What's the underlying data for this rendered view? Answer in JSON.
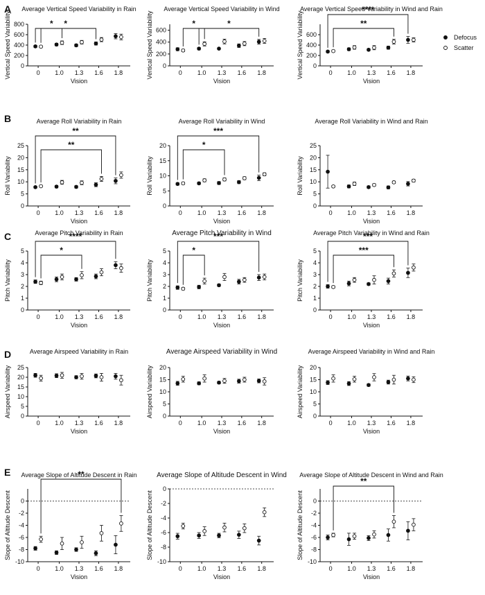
{
  "figure": {
    "legend": {
      "placement": "top-right",
      "entries": [
        {
          "label": "Defocus",
          "marker": "filled-circle"
        },
        {
          "label": "Scatter",
          "marker": "open-circle"
        }
      ]
    },
    "row_labels": [
      "A",
      "B",
      "C",
      "D",
      "E"
    ],
    "colors": {
      "marker": "#111111",
      "background": "#ffffff"
    }
  },
  "chart_data": [
    {
      "id": "A1",
      "row": "A",
      "type": "scatter",
      "title": "Average Vertical Speed Variability in Rain",
      "xlabel": "Vision",
      "ylabel": "Vertical Speed Variability",
      "ylim": [
        0,
        800
      ],
      "yticks": [
        0,
        200,
        400,
        600,
        800
      ],
      "xticks": [
        "0",
        "1.0",
        "1.3",
        "1.6",
        "1.8"
      ],
      "series": [
        {
          "name": "Defocus",
          "values": [
            375,
            410,
            395,
            430,
            570
          ],
          "err": [
            20,
            25,
            25,
            30,
            50
          ]
        },
        {
          "name": "Scatter",
          "values": [
            370,
            445,
            455,
            505,
            555
          ],
          "err": [
            20,
            35,
            35,
            40,
            55
          ]
        }
      ],
      "significance": [
        {
          "label": "*",
          "from": "S0",
          "to": "S1"
        },
        {
          "label": "*",
          "from": "D0",
          "to": "D3"
        }
      ]
    },
    {
      "id": "A2",
      "row": "A",
      "type": "scatter",
      "title": "Average Vertical Speed Variability in Wind",
      "xlabel": "Vision",
      "ylabel": "Vertical Speed Variability",
      "ylim": [
        0,
        700
      ],
      "yticks": [
        0,
        200,
        400,
        600
      ],
      "xticks": [
        "0",
        "1.0",
        "1.3",
        "1.6",
        "1.8"
      ],
      "series": [
        {
          "name": "Defocus",
          "values": [
            280,
            290,
            290,
            340,
            405
          ],
          "err": [
            25,
            20,
            15,
            30,
            40
          ]
        },
        {
          "name": "Scatter",
          "values": [
            260,
            370,
            410,
            375,
            420
          ],
          "err": [
            20,
            35,
            40,
            35,
            40
          ]
        }
      ],
      "significance": [
        {
          "label": "*",
          "from": "S0",
          "to": "S1"
        },
        {
          "label": "*",
          "from": "D1",
          "to": "D4"
        }
      ]
    },
    {
      "id": "A3",
      "row": "A",
      "type": "scatter",
      "title": "Average Vertical Speed Variability in Wind and Rain",
      "xlabel": "Vision",
      "ylabel": "Vertical Speed Variability",
      "ylim": [
        0,
        800
      ],
      "yticks": [
        0,
        200,
        400,
        600
      ],
      "xticks": [
        "0",
        "1.0",
        "1.3",
        "1.6",
        "1.8"
      ],
      "series": [
        {
          "name": "Defocus",
          "values": [
            275,
            320,
            310,
            350,
            500
          ],
          "err": [
            20,
            25,
            20,
            30,
            65
          ]
        },
        {
          "name": "Scatter",
          "values": [
            285,
            355,
            350,
            465,
            500
          ],
          "err": [
            20,
            35,
            40,
            45,
            40
          ]
        }
      ],
      "significance": [
        {
          "label": "****",
          "from": "D0",
          "to": "D4"
        },
        {
          "label": "**",
          "from": "S0",
          "to": "S3"
        }
      ]
    },
    {
      "id": "B1",
      "row": "B",
      "type": "scatter",
      "title": "Average Roll Variability in Rain",
      "xlabel": "Vision",
      "ylabel": "Roll Variability",
      "ylim": [
        0,
        25
      ],
      "yticks": [
        0,
        5,
        10,
        15,
        20,
        25
      ],
      "xticks": [
        "0",
        "1.0",
        "1.3",
        "1.6",
        "1.8"
      ],
      "series": [
        {
          "name": "Defocus",
          "values": [
            7.8,
            8,
            7.9,
            8.8,
            10.4
          ],
          "err": [
            0.4,
            0.5,
            0.5,
            0.8,
            1.2
          ]
        },
        {
          "name": "Scatter",
          "values": [
            8.2,
            9.8,
            9.6,
            11.2,
            12.8
          ],
          "err": [
            0.4,
            0.8,
            0.8,
            1.0,
            1.3
          ]
        }
      ],
      "significance": [
        {
          "label": "**",
          "from": "D0",
          "to": "D4"
        },
        {
          "label": "**",
          "from": "S0",
          "to": "S3"
        }
      ]
    },
    {
      "id": "B2",
      "row": "B",
      "type": "scatter",
      "title": "Average Roll Variability in Wind",
      "xlabel": "Vision",
      "ylabel": "Roll Variability",
      "ylim": [
        0,
        20
      ],
      "yticks": [
        0,
        5,
        10,
        15,
        20
      ],
      "xticks": [
        "0",
        "1.0",
        "1.3",
        "1.6",
        "1.8"
      ],
      "series": [
        {
          "name": "Defocus",
          "values": [
            7.3,
            7.5,
            7.6,
            7.9,
            9.3
          ],
          "err": [
            0.4,
            0.4,
            0.5,
            0.5,
            0.9
          ]
        },
        {
          "name": "Scatter",
          "values": [
            7.5,
            8.5,
            8.8,
            9.2,
            10.5
          ],
          "err": [
            0.4,
            0.5,
            0.5,
            0.5,
            0.5
          ]
        }
      ],
      "significance": [
        {
          "label": "*",
          "from": "S0",
          "to": "S2"
        },
        {
          "label": "***",
          "from": "D0",
          "to": "D4"
        }
      ]
    },
    {
      "id": "B3",
      "row": "B",
      "type": "scatter",
      "title": "Average Roll Variability in Wind and Rain",
      "xlabel": "Vision",
      "ylabel": "Roll Variability",
      "ylim": [
        0,
        25
      ],
      "yticks": [
        0,
        5,
        10,
        15,
        20,
        25
      ],
      "xticks": [
        "0",
        "1.0",
        "1.3",
        "1.6",
        "1.8"
      ],
      "series": [
        {
          "name": "Defocus",
          "values": [
            14.2,
            8.1,
            7.8,
            7.7,
            9.2
          ],
          "err": [
            6.8,
            0.6,
            0.5,
            0.6,
            0.9
          ]
        },
        {
          "name": "Scatter",
          "values": [
            8.1,
            9.2,
            8.7,
            9.8,
            10.5
          ],
          "err": [
            0.4,
            0.7,
            0.5,
            0.5,
            0.6
          ]
        }
      ],
      "significance": []
    },
    {
      "id": "C1",
      "row": "C",
      "type": "scatter",
      "title": "Average Pitch Variability in Rain",
      "xlabel": "Vision",
      "ylabel": "Pitch Variability",
      "ylim": [
        0,
        5
      ],
      "yticks": [
        0,
        1,
        2,
        3,
        4,
        5
      ],
      "xticks": [
        "0",
        "1.0",
        "1.3",
        "1.6",
        "1.8"
      ],
      "series": [
        {
          "name": "Defocus",
          "values": [
            2.4,
            2.6,
            2.6,
            2.85,
            3.8
          ],
          "err": [
            0.15,
            0.2,
            0.15,
            0.2,
            0.3
          ]
        },
        {
          "name": "Scatter",
          "values": [
            2.3,
            2.8,
            2.95,
            3.2,
            3.55
          ],
          "err": [
            0.15,
            0.25,
            0.3,
            0.3,
            0.35
          ]
        }
      ],
      "significance": [
        {
          "label": "*",
          "from": "S0",
          "to": "S2"
        },
        {
          "label": "****",
          "from": "D0",
          "to": "D4"
        }
      ]
    },
    {
      "id": "C2",
      "row": "C",
      "type": "scatter",
      "title": "Average Pitch Variability in Wind",
      "xlabel": "Vision",
      "ylabel": "Pitch Variability",
      "ylim": [
        0,
        5
      ],
      "yticks": [
        0,
        1,
        2,
        3,
        4,
        5
      ],
      "xticks": [
        "0",
        "1.0",
        "1.3",
        "1.6",
        "1.8"
      ],
      "series": [
        {
          "name": "Defocus",
          "values": [
            1.9,
            1.95,
            2.1,
            2.4,
            2.75
          ],
          "err": [
            0.15,
            0.15,
            0.1,
            0.2,
            0.25
          ]
        },
        {
          "name": "Scatter",
          "values": [
            1.8,
            2.45,
            2.8,
            2.55,
            2.8
          ],
          "err": [
            0.1,
            0.25,
            0.3,
            0.2,
            0.25
          ]
        }
      ],
      "significance": [
        {
          "label": "*",
          "from": "S0",
          "to": "S1"
        },
        {
          "label": "***",
          "from": "D0",
          "to": "D4"
        }
      ]
    },
    {
      "id": "C3",
      "row": "C",
      "type": "scatter",
      "title": "Average Pitch Variability in Wind and Rain",
      "xlabel": "Vision",
      "ylabel": "Pitch Variability",
      "ylim": [
        0,
        5
      ],
      "yticks": [
        0,
        1,
        2,
        3,
        4,
        5
      ],
      "xticks": [
        "0",
        "1.0",
        "1.3",
        "1.6",
        "1.8"
      ],
      "series": [
        {
          "name": "Defocus",
          "values": [
            2.0,
            2.25,
            2.2,
            2.45,
            3.15
          ],
          "err": [
            0.15,
            0.2,
            0.1,
            0.25,
            0.4
          ]
        },
        {
          "name": "Scatter",
          "values": [
            1.95,
            2.55,
            2.55,
            3.1,
            3.6
          ],
          "err": [
            0.1,
            0.2,
            0.35,
            0.3,
            0.3
          ]
        }
      ],
      "significance": [
        {
          "label": "***",
          "from": "D0",
          "to": "D4"
        },
        {
          "label": "***",
          "from": "S0",
          "to": "S3"
        }
      ]
    },
    {
      "id": "D1",
      "row": "D",
      "type": "scatter",
      "title": "Average Airspeed Variability in Rain",
      "xlabel": "Vision",
      "ylabel": "Airspeed Variability",
      "ylim": [
        0,
        25
      ],
      "yticks": [
        0,
        5,
        10,
        15,
        20,
        25
      ],
      "xticks": [
        "0",
        "1.0",
        "1.3",
        "1.6",
        "1.8"
      ],
      "series": [
        {
          "name": "Defocus",
          "values": [
            21,
            20.8,
            20,
            20.7,
            20.5
          ],
          "err": [
            1.0,
            1.0,
            0.8,
            1.0,
            1.5
          ]
        },
        {
          "name": "Scatter",
          "values": [
            19.5,
            21,
            20.5,
            20,
            18.5
          ],
          "err": [
            1.5,
            1.5,
            1.5,
            2.0,
            2.5
          ]
        }
      ],
      "significance": []
    },
    {
      "id": "D2",
      "row": "D",
      "type": "scatter",
      "title": "Average Airspeed Variability in Wind",
      "xlabel": "Vision",
      "ylabel": "Airspeed Variability",
      "ylim": [
        0,
        20
      ],
      "yticks": [
        0,
        5,
        10,
        15,
        20
      ],
      "xticks": [
        "0",
        "1.0",
        "1.3",
        "1.6",
        "1.8"
      ],
      "series": [
        {
          "name": "Defocus",
          "values": [
            13.5,
            13.5,
            13.8,
            14.4,
            14.5
          ],
          "err": [
            0.8,
            0.6,
            0.5,
            0.8,
            0.8
          ]
        },
        {
          "name": "Scatter",
          "values": [
            15.2,
            15.5,
            14.5,
            15,
            14.3
          ],
          "err": [
            1.2,
            1.5,
            1.0,
            1.0,
            1.5
          ]
        }
      ],
      "significance": []
    },
    {
      "id": "D3",
      "row": "D",
      "type": "scatter",
      "title": "Average Airspeed Variability in Wind and Rain",
      "xlabel": "Vision",
      "ylabel": "Airspeed Variability",
      "ylim": [
        0,
        20
      ],
      "yticks": [
        0,
        5,
        10,
        15,
        20
      ],
      "xticks": [
        "0",
        "1.0",
        "1.3",
        "1.6",
        "1.8"
      ],
      "series": [
        {
          "name": "Defocus",
          "values": [
            13.8,
            13.4,
            12.8,
            14,
            15.5
          ],
          "err": [
            0.8,
            0.8,
            0.5,
            0.8,
            1.0
          ]
        },
        {
          "name": "Scatter",
          "values": [
            15.5,
            15.2,
            16,
            15,
            15
          ],
          "err": [
            1.5,
            1.2,
            1.5,
            1.8,
            1.2
          ]
        }
      ],
      "significance": []
    },
    {
      "id": "E1",
      "row": "E",
      "type": "scatter",
      "title": "Average Slope of Altitude Descent in Rain",
      "xlabel": "Vision",
      "ylabel": "Slope of Altitude Descent",
      "ylim": [
        -10,
        2
      ],
      "yticks": [
        0,
        -2,
        -4,
        -6,
        -8,
        -10
      ],
      "xticks": [
        "0",
        "1.0",
        "1.3",
        "1.6",
        "1.8"
      ],
      "refline": 0,
      "series": [
        {
          "name": "Defocus",
          "values": [
            -7.8,
            -8.5,
            -8,
            -8.6,
            -7.2
          ],
          "err": [
            0.3,
            0.3,
            0.3,
            0.4,
            1.5
          ]
        },
        {
          "name": "Scatter",
          "values": [
            -6.3,
            -7,
            -6.8,
            -5.3,
            -3.7
          ],
          "err": [
            0.5,
            1.0,
            1.0,
            1.3,
            1.3
          ]
        }
      ],
      "significance": [
        {
          "label": "**",
          "from": "S0",
          "to": "S4"
        }
      ]
    },
    {
      "id": "E2",
      "row": "E",
      "type": "scatter",
      "title": "Average Slope of Altitude Descent in Wind",
      "xlabel": "Vision",
      "ylabel": "Slope of Altitude Descent",
      "ylim": [
        -10,
        0
      ],
      "yticks": [
        0,
        -2,
        -4,
        -6,
        -8,
        -10
      ],
      "xticks": [
        "0",
        "1.0",
        "1.3",
        "1.6",
        "1.8"
      ],
      "refline": 0,
      "series": [
        {
          "name": "Defocus",
          "values": [
            -6.5,
            -6.4,
            -6.4,
            -6.3,
            -7.1
          ],
          "err": [
            0.4,
            0.4,
            0.3,
            0.5,
            0.6
          ]
        },
        {
          "name": "Scatter",
          "values": [
            -5.1,
            -5.8,
            -5.3,
            -5.4,
            -3.2
          ],
          "err": [
            0.4,
            0.6,
            0.6,
            0.6,
            0.6
          ]
        }
      ],
      "significance": []
    },
    {
      "id": "E3",
      "row": "E",
      "type": "scatter",
      "title": "Average Slope of Altitude Descent in Wind and Rain",
      "xlabel": "Vision",
      "ylabel": "Slope of Altitude Descent",
      "ylim": [
        -10,
        2
      ],
      "yticks": [
        0,
        -2,
        -4,
        -6,
        -8,
        -10
      ],
      "xticks": [
        "0",
        "1.0",
        "1.3",
        "1.6",
        "1.8"
      ],
      "refline": 0,
      "series": [
        {
          "name": "Defocus",
          "values": [
            -6,
            -6.3,
            -6.1,
            -5.6,
            -4.9
          ],
          "err": [
            0.4,
            1.0,
            0.4,
            1.0,
            1.5
          ]
        },
        {
          "name": "Scatter",
          "values": [
            -5.6,
            -5.8,
            -5.5,
            -3.4,
            -3.9
          ],
          "err": [
            0.3,
            0.5,
            0.6,
            1.0,
            1.0
          ]
        }
      ],
      "significance": [
        {
          "label": "**",
          "from": "S0",
          "to": "S3"
        }
      ]
    }
  ]
}
